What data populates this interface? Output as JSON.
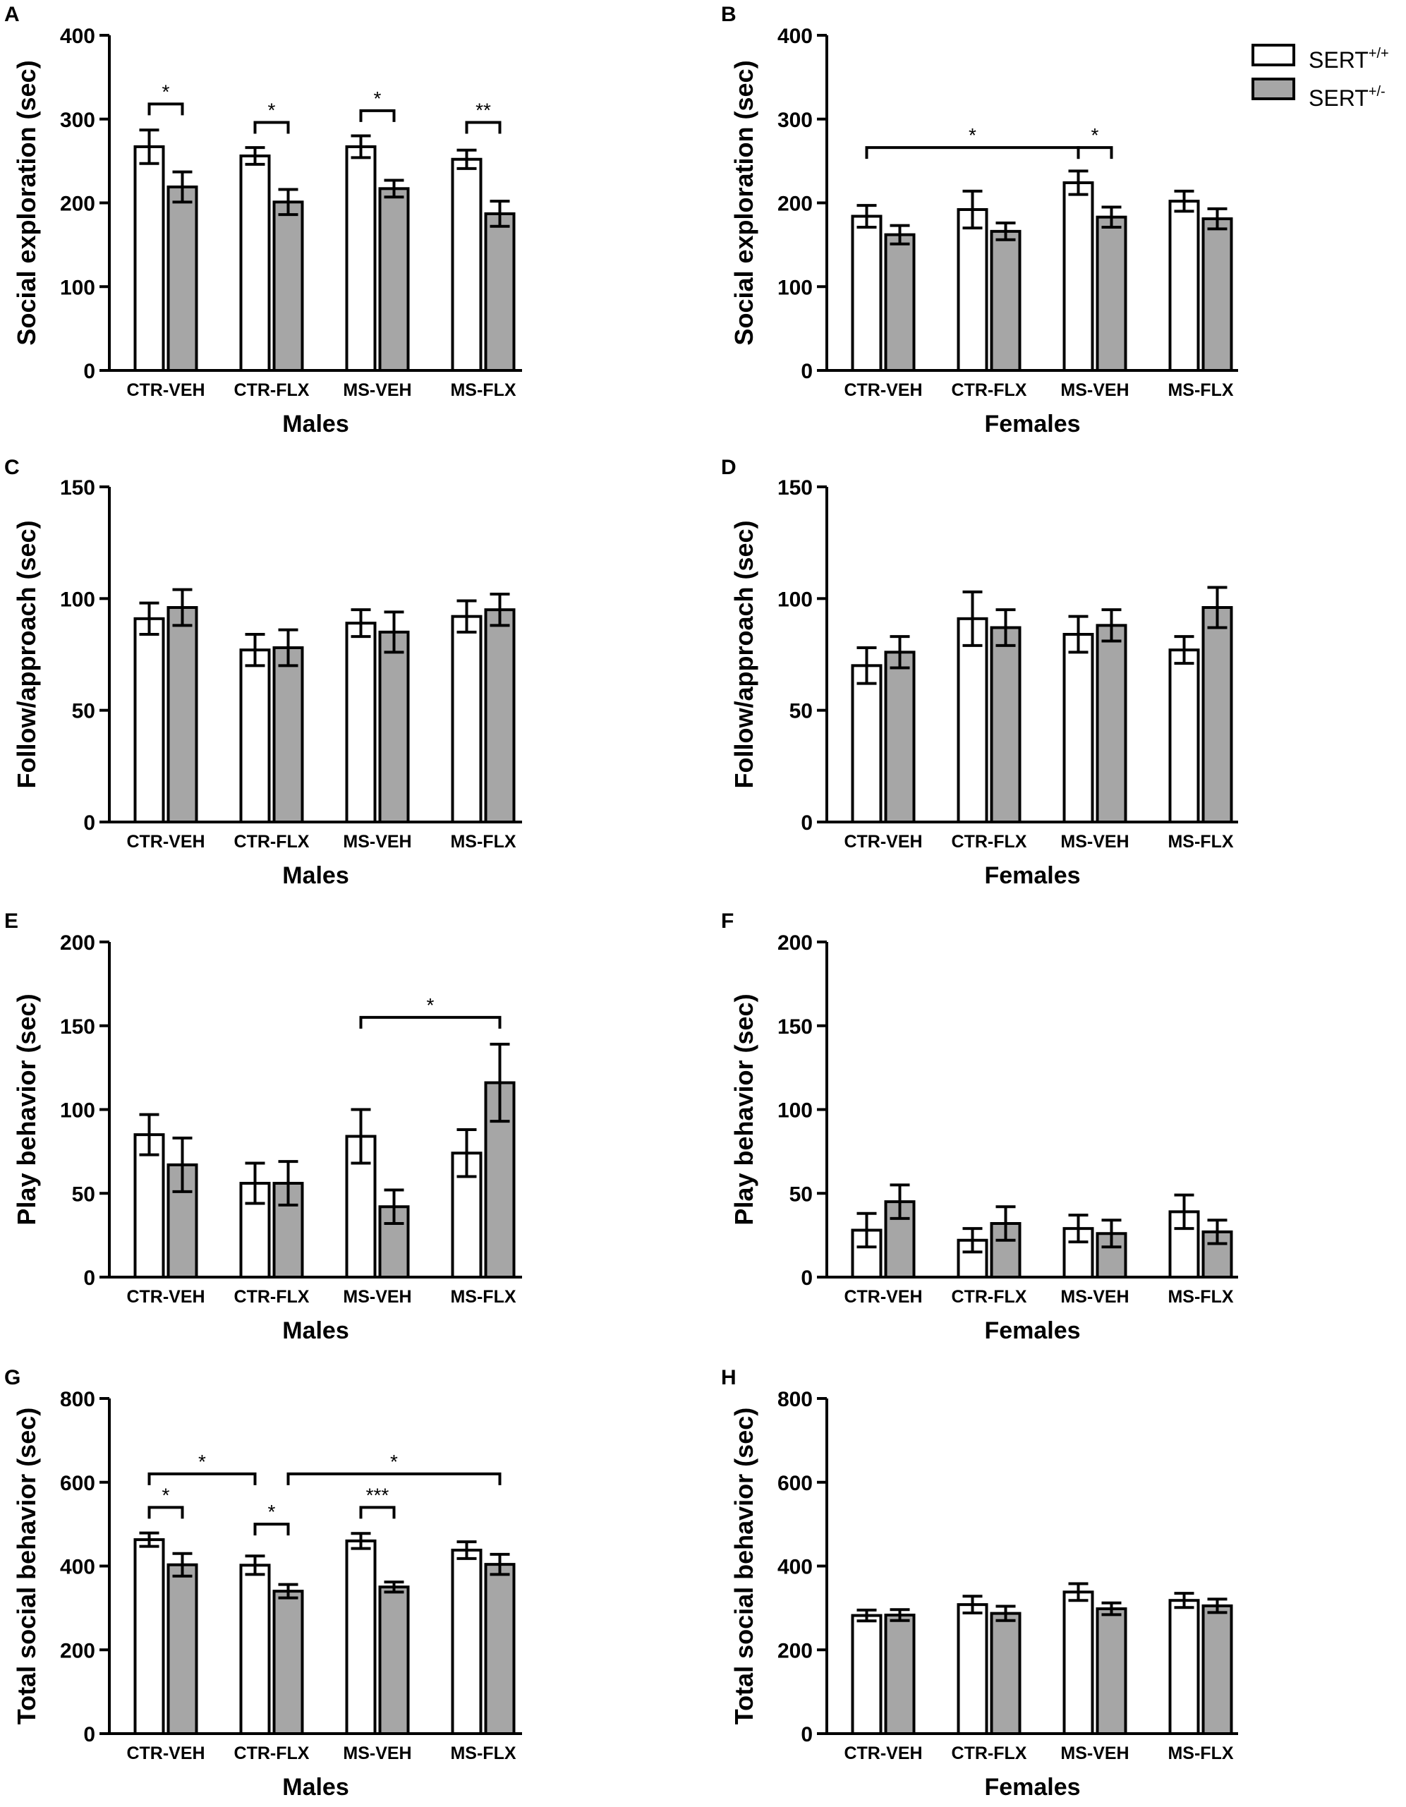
{
  "legend": {
    "items": [
      {
        "name": "SERT",
        "superscript": "+/+",
        "fill": "#ffffff"
      },
      {
        "name": "SERT",
        "superscript": "+/-",
        "fill": "#a6a6a6"
      }
    ]
  },
  "colors": {
    "wildtype": "#ffffff",
    "heterozygous": "#a6a6a6",
    "stroke": "#000000"
  },
  "chart_data": [
    {
      "letter": "A",
      "type": "bar",
      "ylabel": "Social exploration (sec)",
      "xlabel": "Males",
      "categories": [
        "CTR-VEH",
        "CTR-FLX",
        "MS-VEH",
        "MS-FLX"
      ],
      "ylim": [
        0,
        400
      ],
      "yticks": [
        0,
        100,
        200,
        300,
        400
      ],
      "series": [
        {
          "name": "SERT+/+",
          "values": [
            267,
            256,
            267,
            252
          ],
          "errors": [
            20,
            10,
            13,
            11
          ]
        },
        {
          "name": "SERT+/-",
          "values": [
            219,
            201,
            217,
            187
          ],
          "errors": [
            18,
            15,
            10,
            15
          ]
        }
      ],
      "significance": [
        {
          "from": [
            0,
            0
          ],
          "to": [
            0,
            1
          ],
          "y": 318,
          "label": "*"
        },
        {
          "from": [
            1,
            0
          ],
          "to": [
            1,
            1
          ],
          "y": 296,
          "label": "*"
        },
        {
          "from": [
            2,
            0
          ],
          "to": [
            2,
            1
          ],
          "y": 310,
          "label": "*"
        },
        {
          "from": [
            3,
            0
          ],
          "to": [
            3,
            1
          ],
          "y": 296,
          "label": "**"
        }
      ]
    },
    {
      "letter": "B",
      "type": "bar",
      "ylabel": "Social exploration (sec)",
      "xlabel": "Females",
      "categories": [
        "CTR-VEH",
        "CTR-FLX",
        "MS-VEH",
        "MS-FLX"
      ],
      "ylim": [
        0,
        400
      ],
      "yticks": [
        0,
        100,
        200,
        300,
        400
      ],
      "series": [
        {
          "name": "SERT+/+",
          "values": [
            184,
            192,
            224,
            202
          ],
          "errors": [
            13,
            22,
            14,
            12
          ]
        },
        {
          "name": "SERT+/-",
          "values": [
            162,
            166,
            183,
            181
          ],
          "errors": [
            11,
            10,
            12,
            12
          ]
        }
      ],
      "significance": [
        {
          "from": [
            0,
            0
          ],
          "to": [
            2,
            0
          ],
          "y": 266,
          "label": "*"
        },
        {
          "from": [
            2,
            0
          ],
          "to": [
            2,
            1
          ],
          "y": 266,
          "label": "*"
        }
      ]
    },
    {
      "letter": "C",
      "type": "bar",
      "ylabel": "Follow/approach (sec)",
      "xlabel": "Males",
      "categories": [
        "CTR-VEH",
        "CTR-FLX",
        "MS-VEH",
        "MS-FLX"
      ],
      "ylim": [
        0,
        150
      ],
      "yticks": [
        0,
        50,
        100,
        150
      ],
      "series": [
        {
          "name": "SERT+/+",
          "values": [
            91,
            77,
            89,
            92
          ],
          "errors": [
            7,
            7,
            6,
            7
          ]
        },
        {
          "name": "SERT+/-",
          "values": [
            96,
            78,
            85,
            95
          ],
          "errors": [
            8,
            8,
            9,
            7
          ]
        }
      ],
      "significance": []
    },
    {
      "letter": "D",
      "type": "bar",
      "ylabel": "Follow/approach (sec)",
      "xlabel": "Females",
      "categories": [
        "CTR-VEH",
        "CTR-FLX",
        "MS-VEH",
        "MS-FLX"
      ],
      "ylim": [
        0,
        150
      ],
      "yticks": [
        0,
        50,
        100,
        150
      ],
      "series": [
        {
          "name": "SERT+/+",
          "values": [
            70,
            91,
            84,
            77
          ],
          "errors": [
            8,
            12,
            8,
            6
          ]
        },
        {
          "name": "SERT+/-",
          "values": [
            76,
            87,
            88,
            96
          ],
          "errors": [
            7,
            8,
            7,
            9
          ]
        }
      ],
      "significance": []
    },
    {
      "letter": "E",
      "type": "bar",
      "ylabel": "Play behavior (sec)",
      "xlabel": "Males",
      "categories": [
        "CTR-VEH",
        "CTR-FLX",
        "MS-VEH",
        "MS-FLX"
      ],
      "ylim": [
        0,
        200
      ],
      "yticks": [
        0,
        50,
        100,
        150,
        200
      ],
      "series": [
        {
          "name": "SERT+/+",
          "values": [
            85,
            56,
            84,
            74
          ],
          "errors": [
            12,
            12,
            16,
            14
          ]
        },
        {
          "name": "SERT+/-",
          "values": [
            67,
            56,
            42,
            116
          ],
          "errors": [
            16,
            13,
            10,
            23
          ]
        }
      ],
      "significance": [
        {
          "from": [
            2,
            0
          ],
          "to": [
            3,
            1
          ],
          "y": 155,
          "label": "*"
        }
      ]
    },
    {
      "letter": "F",
      "type": "bar",
      "ylabel": "Play behavior (sec)",
      "xlabel": "Females",
      "categories": [
        "CTR-VEH",
        "CTR-FLX",
        "MS-VEH",
        "MS-FLX"
      ],
      "ylim": [
        0,
        200
      ],
      "yticks": [
        0,
        50,
        100,
        150,
        200
      ],
      "series": [
        {
          "name": "SERT+/+",
          "values": [
            28,
            22,
            29,
            39
          ],
          "errors": [
            10,
            7,
            8,
            10
          ]
        },
        {
          "name": "SERT+/-",
          "values": [
            45,
            32,
            26,
            27
          ],
          "errors": [
            10,
            10,
            8,
            7
          ]
        }
      ],
      "significance": []
    },
    {
      "letter": "G",
      "type": "bar",
      "ylabel": "Total social behavior (sec)",
      "xlabel": "Males",
      "categories": [
        "CTR-VEH",
        "CTR-FLX",
        "MS-VEH",
        "MS-FLX"
      ],
      "ylim": [
        0,
        800
      ],
      "yticks": [
        0,
        200,
        400,
        600,
        800
      ],
      "series": [
        {
          "name": "SERT+/+",
          "values": [
            463,
            402,
            460,
            438
          ],
          "errors": [
            16,
            22,
            18,
            20
          ]
        },
        {
          "name": "SERT+/-",
          "values": [
            403,
            340,
            350,
            404
          ],
          "errors": [
            27,
            16,
            12,
            24
          ]
        }
      ],
      "significance": [
        {
          "from": [
            0,
            0
          ],
          "to": [
            1,
            0
          ],
          "y": 620,
          "label": "*"
        },
        {
          "from": [
            1,
            1
          ],
          "to": [
            3,
            1
          ],
          "y": 620,
          "label": "*"
        },
        {
          "from": [
            0,
            0
          ],
          "to": [
            0,
            1
          ],
          "y": 540,
          "label": "*"
        },
        {
          "from": [
            1,
            0
          ],
          "to": [
            1,
            1
          ],
          "y": 500,
          "label": "*"
        },
        {
          "from": [
            2,
            0
          ],
          "to": [
            2,
            1
          ],
          "y": 540,
          "label": "***"
        }
      ]
    },
    {
      "letter": "H",
      "type": "bar",
      "ylabel": "Total social behavior (sec)",
      "xlabel": "Females",
      "categories": [
        "CTR-VEH",
        "CTR-FLX",
        "MS-VEH",
        "MS-FLX"
      ],
      "ylim": [
        0,
        800
      ],
      "yticks": [
        0,
        200,
        400,
        600,
        800
      ],
      "series": [
        {
          "name": "SERT+/+",
          "values": [
            282,
            308,
            338,
            318
          ],
          "errors": [
            13,
            20,
            20,
            17
          ]
        },
        {
          "name": "SERT+/-",
          "values": [
            283,
            287,
            298,
            305
          ],
          "errors": [
            13,
            17,
            14,
            16
          ]
        }
      ],
      "significance": []
    }
  ]
}
